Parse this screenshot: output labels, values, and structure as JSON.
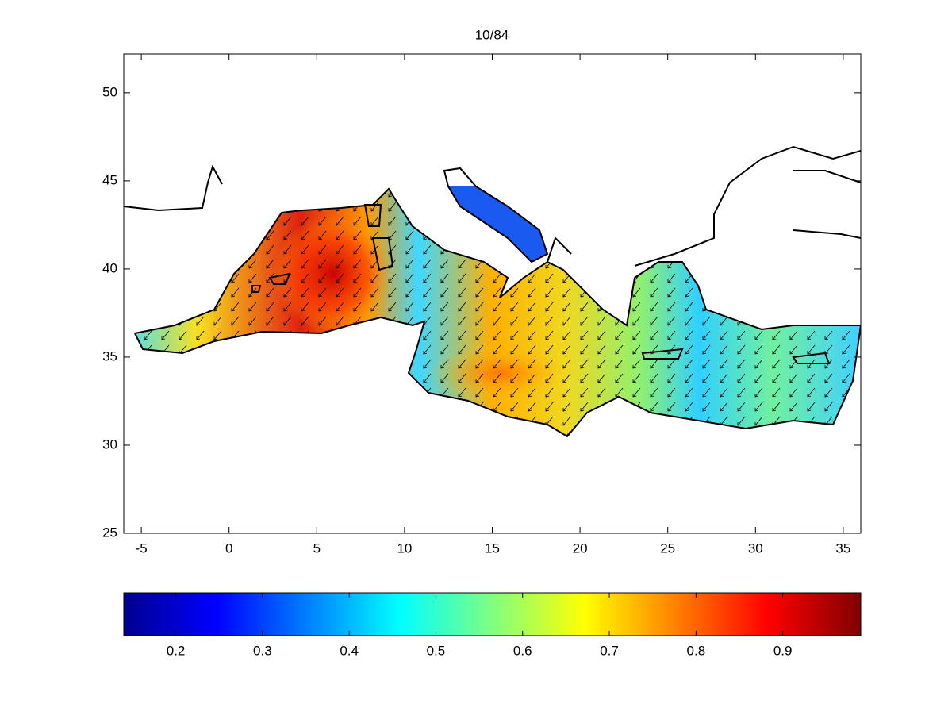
{
  "chart_data": {
    "type": "map",
    "title": "10/84",
    "xlim": [
      -6,
      36
    ],
    "xticks": [
      -5,
      0,
      5,
      10,
      15,
      20,
      25,
      30,
      35
    ],
    "ylim": [
      25,
      52.2
    ],
    "yticks": [
      25,
      30,
      35,
      40,
      45,
      50
    ],
    "colorbar": {
      "lim": [
        0.14,
        0.99
      ],
      "ticks": [
        0.2,
        0.3,
        0.4,
        0.5,
        0.6,
        0.7,
        0.8,
        0.9
      ]
    }
  }
}
